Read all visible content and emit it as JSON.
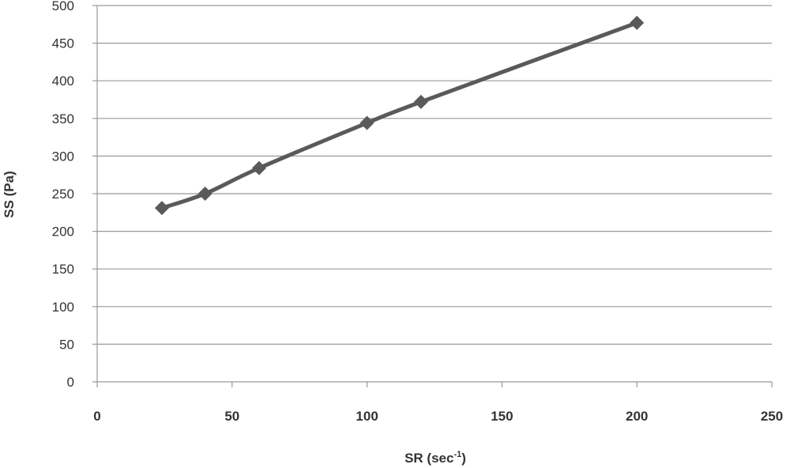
{
  "chart_data": {
    "type": "scatter",
    "title": "",
    "xlabel": "SR (sec",
    "xlabel_superscript": "-1",
    "xlabel_suffix": ")",
    "ylabel": "SS (Pa)",
    "xlim": [
      0,
      250
    ],
    "ylim": [
      0,
      500
    ],
    "x_ticks": [
      0,
      50,
      100,
      150,
      200,
      250
    ],
    "y_ticks": [
      0,
      50,
      100,
      150,
      200,
      250,
      300,
      350,
      400,
      450,
      500
    ],
    "grid": "horizontal",
    "legend": "none",
    "marker": "diamond",
    "line": "smoothed",
    "series_color": "#5a5a5a",
    "series": [
      {
        "points": [
          {
            "x": 24,
            "y": 231
          },
          {
            "x": 40,
            "y": 250
          },
          {
            "x": 60,
            "y": 284
          },
          {
            "x": 100,
            "y": 344
          },
          {
            "x": 120,
            "y": 372
          },
          {
            "x": 200,
            "y": 477
          }
        ]
      }
    ]
  }
}
